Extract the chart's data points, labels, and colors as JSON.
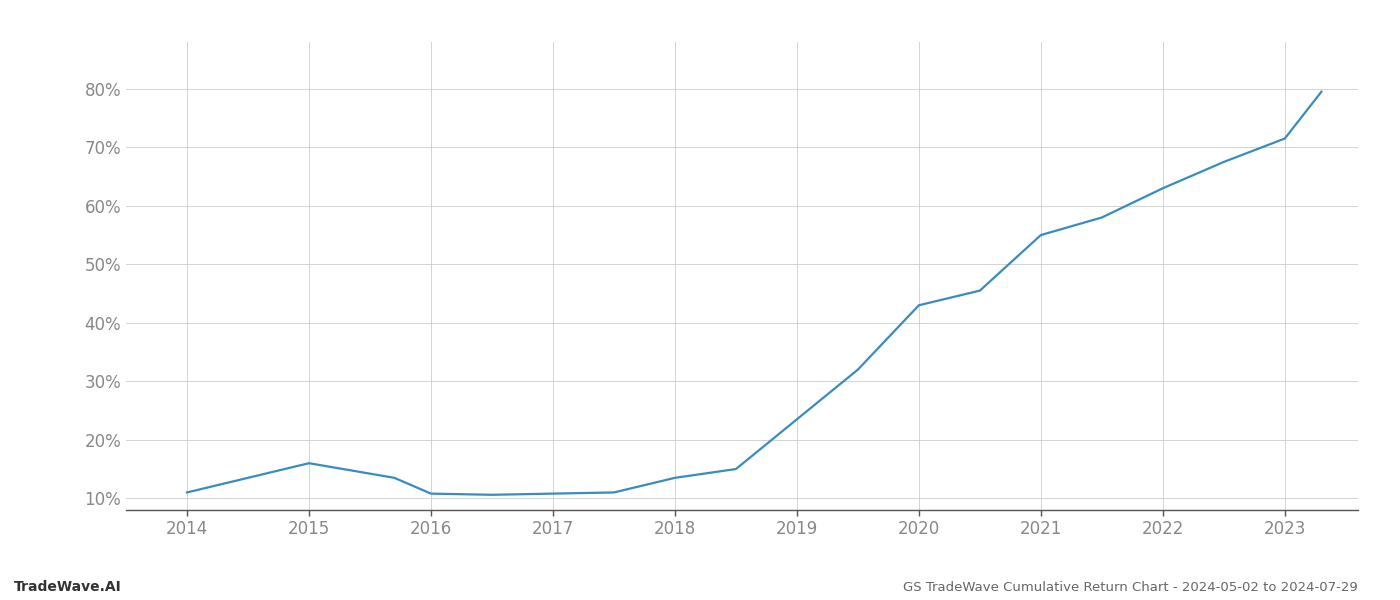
{
  "x_years": [
    2014,
    2014.4,
    2015.0,
    2015.7,
    2016.0,
    2016.5,
    2017.0,
    2017.5,
    2018.0,
    2018.5,
    2019.0,
    2019.5,
    2020.0,
    2020.5,
    2021.0,
    2021.5,
    2022.0,
    2022.5,
    2023.0,
    2023.3
  ],
  "y_values": [
    11.0,
    13.0,
    16.0,
    13.5,
    10.8,
    10.6,
    10.8,
    11.0,
    13.5,
    15.0,
    23.5,
    32.0,
    43.0,
    45.5,
    55.0,
    58.0,
    63.0,
    67.5,
    71.5,
    79.5
  ],
  "line_color": "#3a8bbf",
  "line_width": 1.6,
  "title": "GS TradeWave Cumulative Return Chart - 2024-05-02 to 2024-07-29",
  "watermark": "TradeWave.AI",
  "ylim": [
    8,
    88
  ],
  "yticks": [
    10,
    20,
    30,
    40,
    50,
    60,
    70,
    80
  ],
  "x_tick_positions": [
    2014,
    2015,
    2016,
    2017,
    2018,
    2019,
    2020,
    2021,
    2022,
    2023
  ],
  "xtick_labels": [
    "2014",
    "2015",
    "2016",
    "2017",
    "2018",
    "2019",
    "2020",
    "2021",
    "2022",
    "2023"
  ],
  "background_color": "#ffffff",
  "grid_color": "#cccccc",
  "tick_color": "#888888",
  "title_color": "#666666",
  "watermark_color": "#333333"
}
